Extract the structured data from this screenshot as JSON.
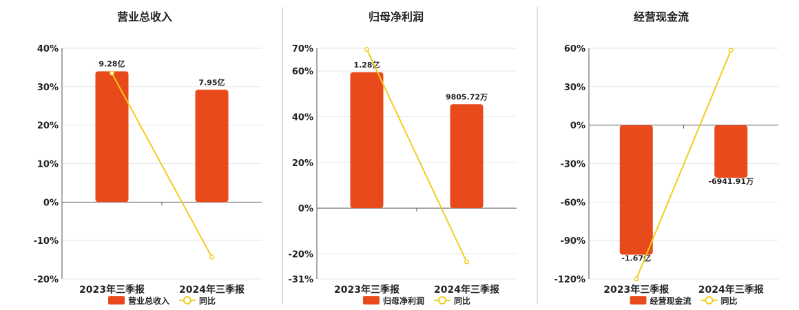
{
  "colors": {
    "bar": "#E84A1B",
    "line": "#F2CC1A",
    "axis": "#555555",
    "grid": "#E6E6E6",
    "text": "#222222",
    "divider": "#BDBDBD"
  },
  "legend_line_label": "同比",
  "chart_data": [
    {
      "type": "bar",
      "title": "营业总收入",
      "categories": [
        "2023年三季报",
        "2024年三季报"
      ],
      "series": [
        {
          "name": "营业总收入",
          "type": "bar",
          "data_labels": [
            "9.28亿",
            "7.95亿"
          ]
        },
        {
          "name": "同比",
          "type": "line",
          "values": [
            33.5,
            -14.3
          ]
        }
      ],
      "y_ticks": [
        "40%",
        "30%",
        "20%",
        "10%",
        "0%",
        "-10%",
        "-20%"
      ],
      "y_tick_values": [
        40,
        30,
        20,
        10,
        0,
        -10,
        -20
      ],
      "ylim": [
        -20,
        40
      ],
      "bar_heights_pct": [
        34,
        29.2
      ],
      "legend": "bottom"
    },
    {
      "type": "bar",
      "title": "归母净利润",
      "categories": [
        "2023年三季报",
        "2024年三季报"
      ],
      "series": [
        {
          "name": "归母净利润",
          "type": "bar",
          "data_labels": [
            "1.28亿",
            "9805.72万"
          ]
        },
        {
          "name": "同比",
          "type": "line",
          "values": [
            69.5,
            -23.5
          ]
        }
      ],
      "y_ticks": [
        "70%",
        "60%",
        "40%",
        "20%",
        "0%",
        "-20%",
        "-31%"
      ],
      "y_tick_values": [
        70,
        60,
        40,
        20,
        0,
        -20,
        -31
      ],
      "ylim": [
        -31,
        70
      ],
      "bar_heights_pct": [
        59.5,
        45.5
      ],
      "legend": "bottom"
    },
    {
      "type": "bar",
      "title": "经营现金流",
      "categories": [
        "2023年三季报",
        "2024年三季报"
      ],
      "series": [
        {
          "name": "经营现金流",
          "type": "bar",
          "data_labels": [
            "-1.67亿",
            "-6941.91万"
          ]
        },
        {
          "name": "同比",
          "type": "line",
          "values": [
            -120,
            58.5
          ]
        }
      ],
      "y_ticks": [
        "60%",
        "30%",
        "0%",
        "-30%",
        "-60%",
        "-90%",
        "-120%"
      ],
      "y_tick_values": [
        60,
        30,
        0,
        -30,
        -60,
        -90,
        -120
      ],
      "ylim": [
        -120,
        60
      ],
      "bar_heights_pct": [
        -101,
        -41
      ],
      "legend": "bottom"
    }
  ]
}
